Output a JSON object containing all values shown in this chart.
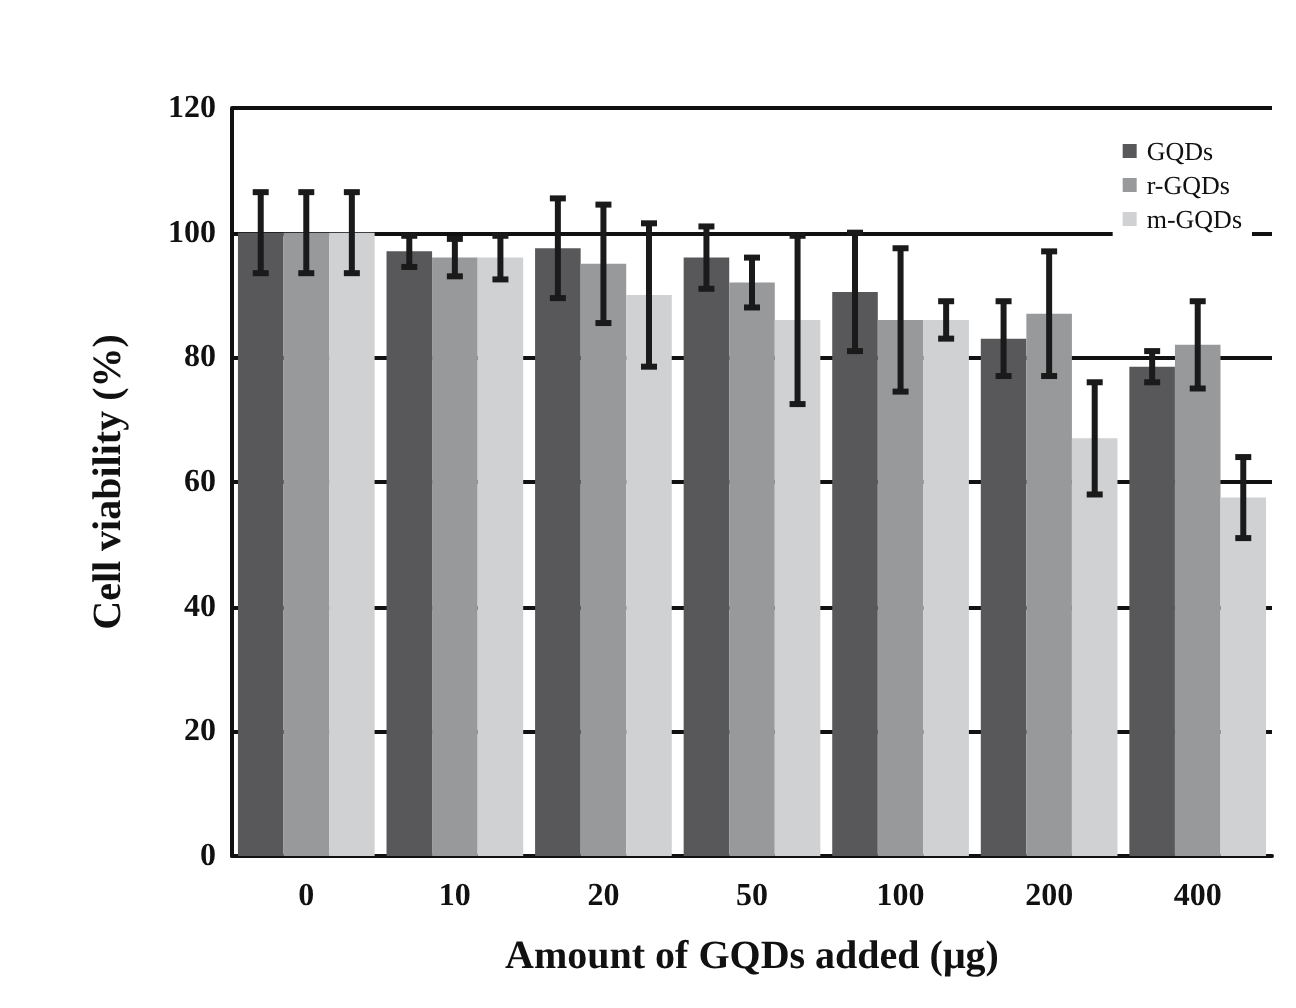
{
  "chart_data": {
    "type": "bar",
    "xlabel": "Amount of GQDs added (μg)",
    "ylabel": "Cell viability (%)",
    "categories": [
      "0",
      "10",
      "20",
      "50",
      "100",
      "200",
      "400"
    ],
    "series": [
      {
        "name": "GQDs",
        "color": "#58585a",
        "values": [
          100,
          97,
          97.5,
          96,
          90.5,
          83,
          78.5
        ],
        "errors": [
          6.5,
          2.5,
          8,
          5,
          9.5,
          6,
          2.5
        ]
      },
      {
        "name": "r-GQDs",
        "color": "#98999b",
        "values": [
          100,
          96,
          95,
          92,
          86,
          87,
          82
        ],
        "errors": [
          6.5,
          3,
          9.5,
          4,
          11.5,
          10,
          7
        ]
      },
      {
        "name": "m-GQDs",
        "color": "#d0d1d3",
        "values": [
          100,
          96,
          90,
          86,
          86,
          67,
          57.5
        ],
        "errors": [
          6.5,
          3.5,
          11.5,
          13.5,
          3,
          9,
          6.5
        ]
      }
    ],
    "ylim": [
      0,
      120
    ],
    "yticks": [
      0,
      20,
      40,
      60,
      80,
      100,
      120
    ],
    "grid": "y",
    "legend": "top right"
  }
}
